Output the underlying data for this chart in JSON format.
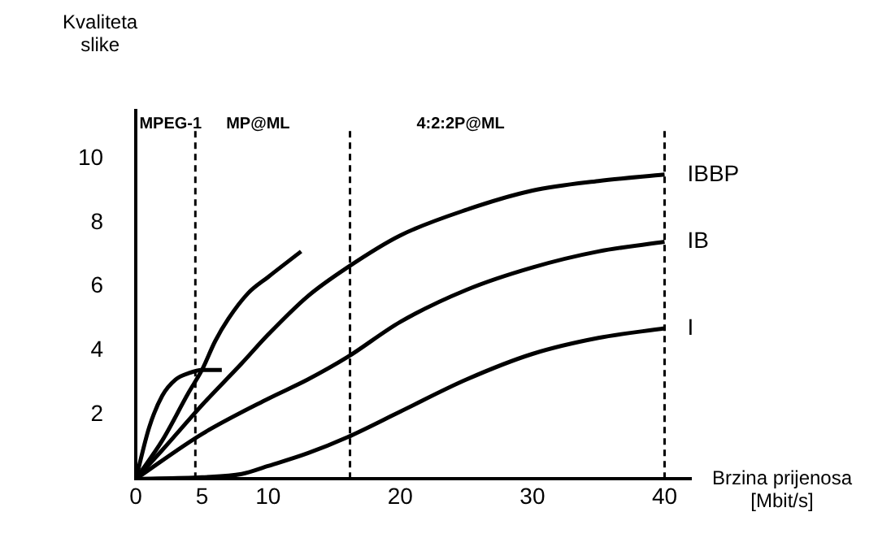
{
  "chart_data": {
    "type": "line",
    "xlabel": "Brzina prijenosa\n[Mbit/s]",
    "ylabel": "Kvaliteta\nslike",
    "xlim": [
      0,
      42
    ],
    "ylim": [
      0,
      11.5
    ],
    "xticks": [
      0,
      5,
      10,
      20,
      30,
      40
    ],
    "yticks": [
      2,
      4,
      6,
      8,
      10
    ],
    "grid": false,
    "legend": false,
    "marker": "none",
    "line_style": "solid",
    "series": [
      {
        "name": "IBBP",
        "color": "#000000",
        "x": [
          0,
          2,
          5,
          8,
          10,
          13,
          16,
          20,
          25,
          30,
          35,
          40
        ],
        "values": [
          0,
          0.9,
          2.3,
          3.6,
          4.5,
          5.7,
          6.6,
          7.6,
          8.4,
          9.0,
          9.3,
          9.5
        ]
      },
      {
        "name": "IB",
        "color": "#000000",
        "x": [
          0,
          5,
          10,
          13,
          16,
          20,
          25,
          30,
          35,
          40
        ],
        "values": [
          0,
          1.4,
          2.5,
          3.1,
          3.8,
          4.9,
          5.9,
          6.6,
          7.1,
          7.4
        ]
      },
      {
        "name": "I",
        "color": "#000000",
        "x": [
          0,
          5,
          8,
          10,
          13,
          16,
          20,
          25,
          30,
          35,
          40
        ],
        "values": [
          0,
          0.05,
          0.15,
          0.4,
          0.8,
          1.3,
          2.1,
          3.1,
          3.9,
          4.4,
          4.7
        ]
      },
      {
        "color": "#000000",
        "x": [
          0,
          2,
          4,
          5,
          6,
          7,
          8.5,
          10,
          12.5
        ],
        "values": [
          0,
          1.2,
          2.7,
          3.4,
          4.3,
          5.0,
          5.8,
          6.3,
          7.1
        ]
      },
      {
        "color": "#000000",
        "x": [
          0,
          1,
          2,
          3,
          4,
          5,
          6.5
        ],
        "values": [
          0,
          1.6,
          2.6,
          3.1,
          3.3,
          3.4,
          3.4
        ]
      }
    ],
    "ref_lines": [
      {
        "axis": "x",
        "value": 4.5,
        "color": "#000000",
        "line_style": "dashed"
      },
      {
        "axis": "x",
        "value": 16.2,
        "color": "#000000",
        "line_style": "dashed"
      },
      {
        "axis": "x",
        "value": 40,
        "color": "#000000",
        "line_style": "dashed"
      }
    ],
    "annotations": [
      "MPEG-1",
      "MP@ML",
      "4:2:2P@ML"
    ]
  }
}
